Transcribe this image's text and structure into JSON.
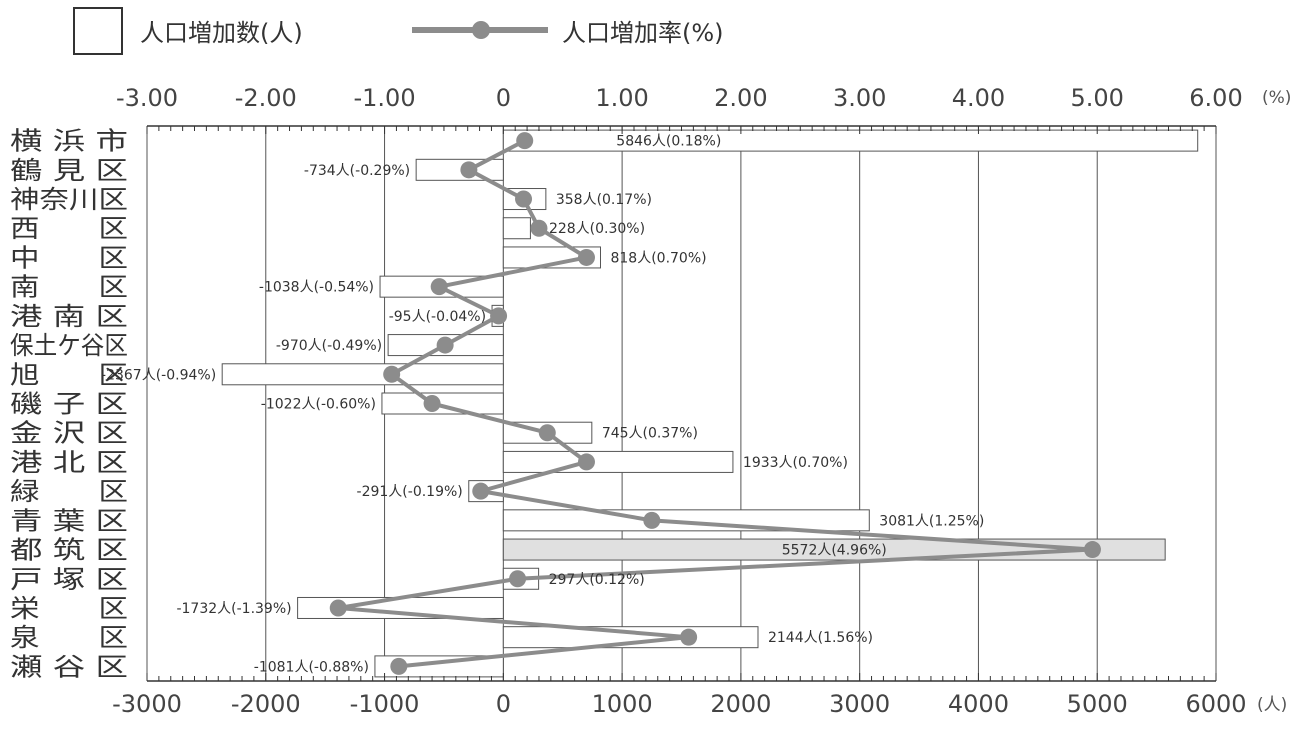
{
  "legend": {
    "bar_label": "人口増加数(人)",
    "line_label": "人口増加率(%)"
  },
  "colors": {
    "bar_fill": "#ffffff",
    "bar_highlight_fill": "#e0e0e0",
    "bar_stroke": "#555555",
    "line": "#8c8c8c",
    "marker": "#8c8c8c",
    "grid": "#555555"
  },
  "chart_data": {
    "type": "bar",
    "orientation": "horizontal",
    "categories": [
      "横 浜 市",
      "鶴 見 区",
      "神奈川区",
      "西　　区",
      "中　　区",
      "南　　区",
      "港 南 区",
      "保土ケ谷区",
      "旭　　区",
      "磯 子 区",
      "金 沢 区",
      "港 北 区",
      "緑　　区",
      "青 葉 区",
      "都 筑 区",
      "戸 塚 区",
      "栄　　区",
      "泉　　区",
      "瀬 谷 区"
    ],
    "series": [
      {
        "name": "人口増加数(人)",
        "type": "bar",
        "axis": "bottom",
        "values": [
          5846,
          -734,
          358,
          228,
          818,
          -1038,
          -95,
          -970,
          -2367,
          -1022,
          745,
          1933,
          -291,
          3081,
          5572,
          297,
          -1732,
          2144,
          -1081
        ],
        "highlight_index": 14
      },
      {
        "name": "人口増加率(%)",
        "type": "line",
        "axis": "top",
        "values": [
          0.18,
          -0.29,
          0.17,
          0.3,
          0.7,
          -0.54,
          -0.04,
          -0.49,
          -0.94,
          -0.6,
          0.37,
          0.7,
          -0.19,
          1.25,
          4.96,
          0.12,
          -1.39,
          1.56,
          -0.88
        ]
      }
    ],
    "data_labels": [
      "5846人(0.18%)",
      "-734人(-0.29%)",
      "358人(0.17%)",
      "228人(0.30%)",
      "818人(0.70%)",
      "-1038人(-0.54%)",
      "-95人(-0.04%)",
      "-970人(-0.49%)",
      "-2367人(-0.94%)",
      "-1022人(-0.60%)",
      "745人(0.37%)",
      "1933人(0.70%)",
      "-291人(-0.19%)",
      "3081人(1.25%)",
      "5572人(4.96%)",
      "297人(0.12%)",
      "-1732人(-1.39%)",
      "2144人(1.56%)",
      "-1081人(-0.88%)"
    ],
    "bottom_axis": {
      "range": [
        -3000,
        6000
      ],
      "ticks": [
        -3000,
        -2000,
        -1000,
        0,
        1000,
        2000,
        3000,
        4000,
        5000,
        6000
      ],
      "tick_labels": [
        "-3000",
        "-2000",
        "-1000",
        "0",
        "1000",
        "2000",
        "3000",
        "4000",
        "5000",
        "6000"
      ],
      "unit": "(人)"
    },
    "top_axis": {
      "range": [
        -3,
        6
      ],
      "ticks": [
        -3,
        -2,
        -1,
        0,
        1,
        2,
        3,
        4,
        5,
        6
      ],
      "tick_labels": [
        "-3.00",
        "-2.00",
        "-1.00",
        "0",
        "1.00",
        "2.00",
        "3.00",
        "4.00",
        "5.00",
        "6.00"
      ],
      "unit": "(%)"
    },
    "grid": true,
    "legend_position": "top-left"
  }
}
